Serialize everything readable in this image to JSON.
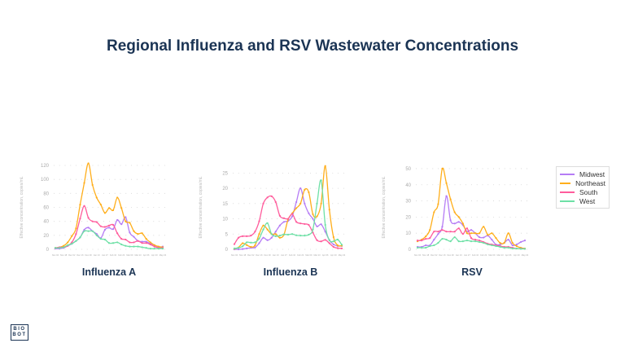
{
  "title": "Regional Influenza and RSV Wastewater Concentrations",
  "logo_text": "BIO BOT",
  "colors": {
    "Midwest": "#b57cf5",
    "Northeast": "#ffae1a",
    "South": "#ff5c9c",
    "West": "#6ee0a6",
    "title": "#1b3454"
  },
  "legend": [
    "Midwest",
    "Northeast",
    "South",
    "West"
  ],
  "chart_data": [
    {
      "type": "line",
      "title": "Influenza A",
      "ylabel": "Effective concentration, copies/mL",
      "xlabel": "",
      "x_ticks": [
        "Nov 04",
        "Nov 18",
        "Dec 02",
        "Dec 16",
        "Dec 30",
        "Jan 13",
        "Jan 27",
        "Feb 10",
        "Feb 24",
        "Mar 09",
        "Mar 23",
        "Apr 06",
        "Apr 20",
        "May 04"
      ],
      "y_ticks": [
        0,
        20,
        40,
        60,
        80,
        100,
        120
      ],
      "ylim": [
        0,
        120
      ],
      "grid": "horizontal dotted",
      "legend": "right",
      "series": [
        {
          "name": "Midwest",
          "values": [
            1,
            1,
            2,
            5,
            8,
            12,
            17,
            28,
            31,
            26,
            22,
            16,
            28,
            31,
            29,
            42,
            36,
            46,
            24,
            18,
            12,
            11,
            11,
            8,
            6,
            3,
            4
          ]
        },
        {
          "name": "Northeast",
          "values": [
            2,
            3,
            5,
            10,
            19,
            30,
            64,
            95,
            123,
            92,
            74,
            64,
            52,
            59,
            56,
            74,
            59,
            40,
            38,
            26,
            22,
            23,
            15,
            10,
            6,
            4,
            3
          ]
        },
        {
          "name": "South",
          "values": [
            2,
            3,
            3,
            5,
            10,
            22,
            44,
            62,
            45,
            40,
            39,
            33,
            32,
            34,
            35,
            23,
            15,
            14,
            10,
            10,
            12,
            9,
            9,
            7,
            4,
            2,
            2
          ]
        },
        {
          "name": "West",
          "values": [
            2,
            2,
            3,
            6,
            8,
            12,
            17,
            26,
            26,
            26,
            20,
            15,
            14,
            9,
            9,
            10,
            7,
            5,
            4,
            4,
            4,
            3,
            2,
            1,
            1,
            1,
            1
          ]
        }
      ]
    },
    {
      "type": "line",
      "title": "Influenza B",
      "ylabel": "Effective concentration, copies/mL",
      "xlabel": "",
      "x_ticks": [
        "Nov 04",
        "Nov 18",
        "Dec 02",
        "Dec 16",
        "Dec 30",
        "Jan 13",
        "Jan 27",
        "Feb 10",
        "Feb 24",
        "Mar 09",
        "Mar 23",
        "Apr 06",
        "Apr 20",
        "May 04"
      ],
      "y_ticks": [
        0,
        5,
        10,
        15,
        20,
        25
      ],
      "ylim": [
        0,
        27.5
      ],
      "grid": "horizontal dotted",
      "legend": "right",
      "series": [
        {
          "name": "Midwest",
          "values": [
            0,
            0,
            0.1,
            0.3,
            0.5,
            0.6,
            2,
            3.8,
            3,
            3.8,
            5.8,
            7.8,
            9,
            9.3,
            10.8,
            15.5,
            20,
            15,
            11.8,
            10,
            7.5,
            8.2,
            5.8,
            3,
            1.6,
            1.1,
            1.1
          ]
        },
        {
          "name": "Northeast",
          "values": [
            0.2,
            0.6,
            2,
            1.4,
            0.8,
            1.3,
            5,
            7.8,
            6.5,
            5,
            5,
            3.8,
            4.8,
            9.8,
            11.8,
            13.5,
            15,
            19.5,
            18.7,
            11.5,
            10.8,
            15,
            27.3,
            13,
            4,
            1.3,
            1.2
          ]
        },
        {
          "name": "South",
          "values": [
            1.7,
            3.8,
            4.3,
            4.3,
            4.5,
            5.8,
            9.2,
            15,
            17,
            17.4,
            15.5,
            11,
            10.2,
            10,
            11.6,
            9,
            8.5,
            8.3,
            8,
            5.5,
            3,
            2.6,
            3.1,
            2,
            0.8,
            0.4,
            0.3
          ]
        },
        {
          "name": "West",
          "values": [
            0.3,
            0.5,
            1,
            2.3,
            2.2,
            2.3,
            3.5,
            6.5,
            8.6,
            5,
            4.3,
            4.5,
            4.9,
            4.8,
            5,
            4.6,
            4.5,
            4.5,
            4.8,
            6.5,
            15,
            22.6,
            8,
            3,
            2.6,
            3.2,
            1.5
          ]
        }
      ]
    },
    {
      "type": "line",
      "title": "RSV",
      "ylabel": "Effective concentration, copies/mL",
      "xlabel": "",
      "x_ticks": [
        "Nov 04",
        "Nov 18",
        "Dec 02",
        "Dec 16",
        "Dec 30",
        "Jan 13",
        "Jan 27",
        "Feb 10",
        "Feb 24",
        "Mar 09",
        "Mar 23",
        "Apr 06",
        "Apr 20",
        "May 04"
      ],
      "y_ticks": [
        0,
        10,
        20,
        30,
        40,
        50
      ],
      "ylim": [
        0,
        52
      ],
      "grid": "horizontal dotted",
      "legend": "right",
      "series": [
        {
          "name": "Midwest",
          "values": [
            1.5,
            1.5,
            2.5,
            2.5,
            6,
            9.5,
            14,
            33,
            18,
            16,
            17,
            15,
            11,
            12,
            10,
            7.5,
            7.3,
            8.5,
            6,
            3,
            3,
            4,
            6,
            2.5,
            3,
            4.5,
            5.5
          ]
        },
        {
          "name": "Northeast",
          "values": [
            5,
            6,
            8,
            12,
            23,
            28,
            50,
            41,
            31,
            23,
            20,
            16,
            10,
            10,
            10,
            10,
            14,
            9,
            10,
            7,
            4,
            4,
            10,
            4,
            2,
            1,
            0.5
          ]
        },
        {
          "name": "South",
          "values": [
            5.5,
            5.5,
            6.5,
            7,
            11,
            11,
            12,
            11,
            11,
            11,
            13,
            9.5,
            13,
            7,
            6,
            5.5,
            4.5,
            3.5,
            3,
            2.5,
            2,
            1.5,
            1.5,
            1,
            0.5,
            0.5,
            0.3
          ]
        },
        {
          "name": "West",
          "values": [
            1,
            1,
            1,
            2,
            2.5,
            4,
            6.5,
            6,
            5,
            7.5,
            5,
            5,
            5.5,
            5,
            5,
            4.5,
            4,
            3,
            2.5,
            2,
            1.5,
            1,
            1,
            0.5,
            0.5,
            0.3,
            0.3
          ]
        }
      ]
    }
  ]
}
